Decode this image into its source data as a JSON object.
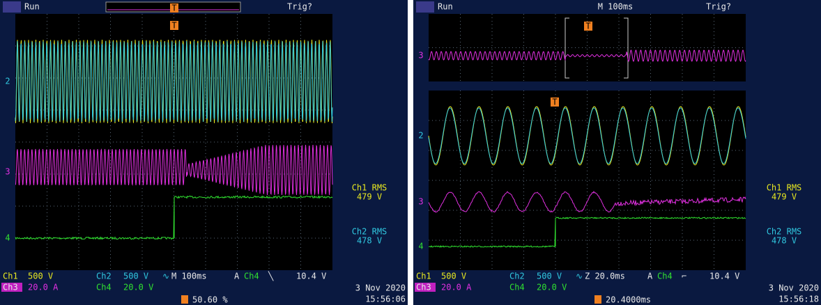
{
  "screens": [
    {
      "status": "Run",
      "trigger_status": "Trig?",
      "trigger_marker": "T",
      "channel_markers": [
        "2",
        "3",
        "4"
      ],
      "readouts": [
        {
          "label": "Ch1 RMS",
          "value": "479 V"
        },
        {
          "label": "Ch2 RMS",
          "value": "478 V"
        }
      ],
      "settings": {
        "ch1": "Ch1",
        "ch1_scale": "500 V",
        "ch2": "Ch2",
        "ch2_scale": "500 V",
        "coupling": "∿",
        "timebase": "M 100ms",
        "trigger_mode": "A",
        "trigger_source": "Ch4",
        "trigger_slope": "╲",
        "trigger_level": "10.4 V",
        "ch3": "Ch3",
        "ch3_scale": "20.0 A",
        "ch4": "Ch4",
        "ch4_scale": "20.0 V"
      },
      "date": "3 Nov 2020",
      "time": "15:56:06",
      "position": "50.60 %"
    },
    {
      "status": "Run",
      "zoom_timebase": "M 100ms",
      "trigger_status": "Trig?",
      "trigger_marker": "T",
      "channel_markers": [
        "3",
        "2",
        "3",
        "4"
      ],
      "readouts": [
        {
          "label": "Ch1 RMS",
          "value": "479 V"
        },
        {
          "label": "Ch2 RMS",
          "value": "478 V"
        }
      ],
      "settings": {
        "ch1": "Ch1",
        "ch1_scale": "500 V",
        "ch2": "Ch2",
        "ch2_scale": "500 V",
        "coupling": "∿",
        "timebase": "Z 20.0ms",
        "trigger_mode": "A",
        "trigger_source": "Ch4",
        "trigger_slope": "⌐",
        "trigger_level": "10.4 V",
        "ch3": "Ch3",
        "ch3_scale": "20.0 A",
        "ch4": "Ch4",
        "ch4_scale": "20.0 V"
      },
      "date": "3 Nov 2020",
      "time": "15:56:18",
      "position": "20.4000ms"
    }
  ]
}
